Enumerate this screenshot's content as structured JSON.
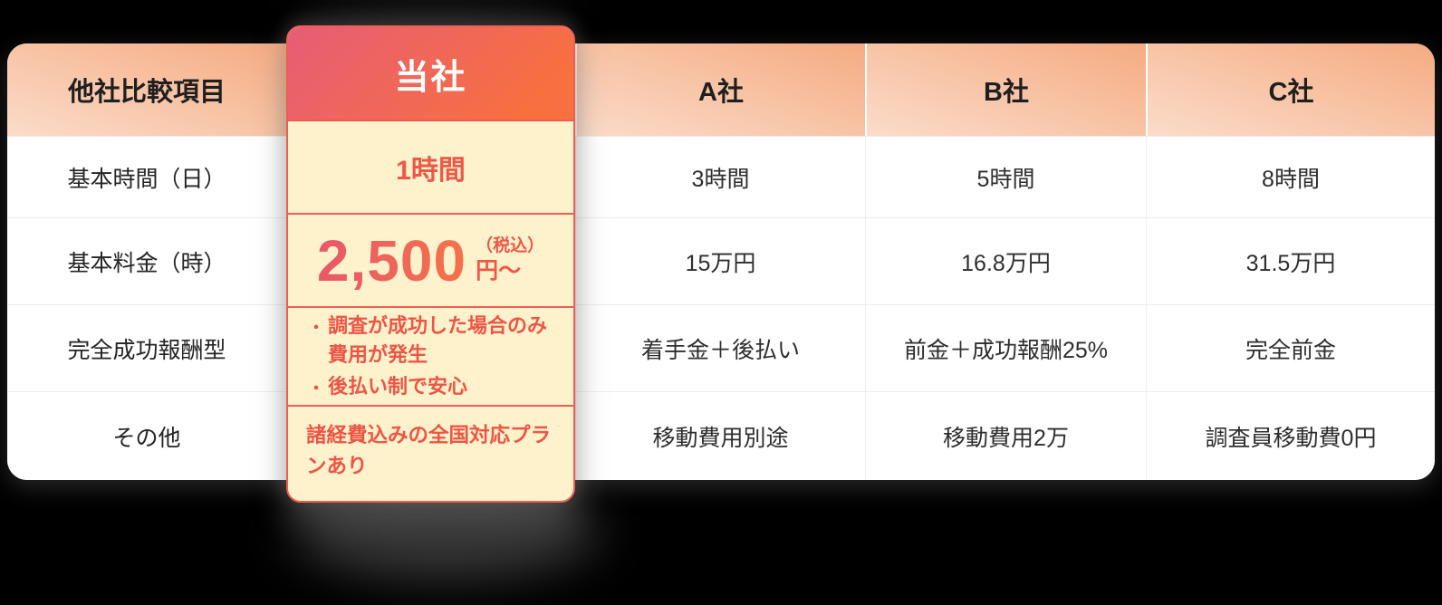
{
  "table": {
    "corner_header": "他社比較項目",
    "company_headers": [
      "A社",
      "B社",
      "C社"
    ],
    "rows": [
      {
        "label": "基本時間（日）",
        "values": [
          "3時間",
          "5時間",
          "8時間"
        ]
      },
      {
        "label": "基本料金（時）",
        "values": [
          "15万円",
          "16.8万円",
          "31.5万円"
        ]
      },
      {
        "label": "完全成功報酬型",
        "values": [
          "着手金＋後払い",
          "前金＋成功報酬25%",
          "完全前金"
        ]
      },
      {
        "label": "その他",
        "values": [
          "移動費用別途",
          "移動費用2万",
          "調査員移動費0円"
        ]
      }
    ]
  },
  "our_card": {
    "title": "当社",
    "basic_time": "1時間",
    "price": {
      "amount": "2,500",
      "tax_note": "（税込）",
      "unit": "円〜"
    },
    "bullet_marker": "・",
    "bullets": [
      "調査が成功した場合のみ費用が発生",
      "後払い制で安心"
    ],
    "other": "諸経費込みの全国対応プランあり"
  },
  "colors": {
    "accent_red": "#EE5D51",
    "card_cream": "#FDF2CC",
    "card_header_gradient": [
      "#E65D77",
      "#F86F40"
    ],
    "header_peach_gradient": [
      "#F5AB81",
      "#FBDCCA"
    ],
    "body_text": "#2E2E2E",
    "background": "#000000"
  },
  "chart_data": {
    "type": "table",
    "title": "他社比較項目",
    "columns": [
      "他社比較項目",
      "当社",
      "A社",
      "B社",
      "C社"
    ],
    "rows": [
      [
        "基本時間（日）",
        "1時間",
        "3時間",
        "5時間",
        "8時間"
      ],
      [
        "基本料金（時）",
        "2,500円〜（税込）",
        "15万円",
        "16.8万円",
        "31.5万円"
      ],
      [
        "完全成功報酬型",
        "調査が成功した場合のみ費用が発生・後払い制で安心",
        "着手金＋後払い",
        "前金＋成功報酬25%",
        "完全前金"
      ],
      [
        "その他",
        "諸経費込みの全国対応プランあり",
        "移動費用別途",
        "移動費用2万",
        "調査員移動費0円"
      ]
    ]
  }
}
